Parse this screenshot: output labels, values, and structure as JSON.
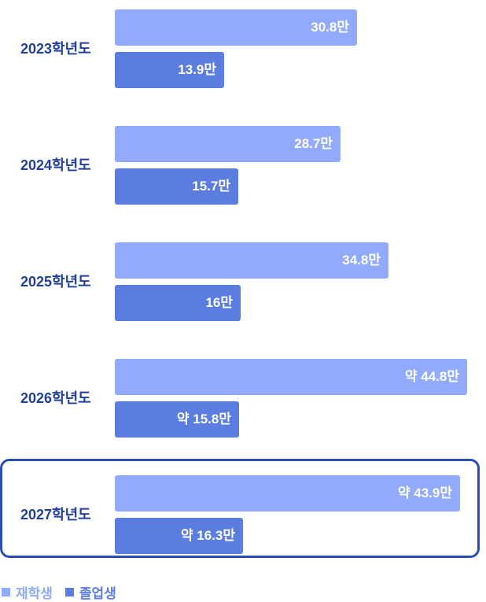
{
  "chart_data": {
    "type": "bar",
    "orientation": "horizontal",
    "categories": [
      "2023학년도",
      "2024학년도",
      "2025학년도",
      "2026학년도",
      "2027학년도"
    ],
    "series": [
      {
        "name": "재학생",
        "color": "#91aafc",
        "values": [
          30.8,
          28.7,
          34.8,
          44.8,
          43.9
        ],
        "labels": [
          "30.8만",
          "28.7만",
          "34.8만",
          "약 44.8만",
          "약 43.9만"
        ]
      },
      {
        "name": "졸업생",
        "color": "#5b7de0",
        "values": [
          13.9,
          15.7,
          16,
          15.8,
          16.3
        ],
        "labels": [
          "13.9만",
          "15.7만",
          "16만",
          "약 15.8만",
          "약 16.3만"
        ]
      }
    ],
    "highlighted_category": "2027학년도",
    "legend_position": "bottom-left",
    "label_color": "#23409a",
    "highlight_color": "#2a4db5"
  }
}
